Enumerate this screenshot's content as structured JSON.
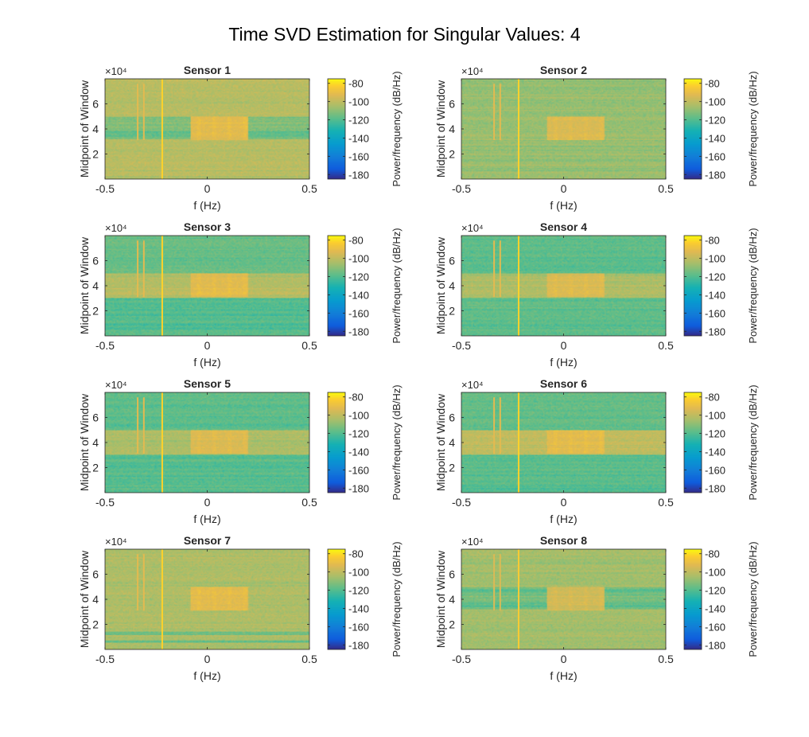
{
  "figure": {
    "title": "Time SVD Estimation for Singular Values: 4"
  },
  "chart_data": [
    {
      "type": "heatmap",
      "title": "Sensor 1",
      "xlabel": "f (Hz)",
      "ylabel": "Midpoint of Window",
      "y_exponent": "×10⁴",
      "xlim": [
        -0.5,
        0.5
      ],
      "ylim": [
        0,
        80000
      ],
      "xticks": [
        -0.5,
        0,
        0.5
      ],
      "yticks": [
        20000,
        40000,
        60000
      ],
      "ytick_labels": [
        "2",
        "4",
        "6"
      ],
      "colorbar": {
        "label": "Power/frequency (dB/Hz)",
        "clim": [
          -185,
          -75
        ],
        "ticks": [
          -80,
          -100,
          -120,
          -140,
          -160,
          -180
        ]
      },
      "background_db": -102,
      "bands": [
        {
          "y_range": [
            32000,
            50000
          ],
          "db": -112
        },
        {
          "y_range": [
            34000,
            38000
          ],
          "db": -118
        }
      ],
      "hot_block": {
        "x_range": [
          -0.08,
          0.2
        ],
        "y_range": [
          31000,
          50000
        ],
        "db": -92
      },
      "spectral_lines": [
        {
          "x": -0.34,
          "y_range": [
            31000,
            76000
          ],
          "db": -92
        },
        {
          "x": -0.31,
          "y_range": [
            31000,
            76000
          ],
          "db": -92
        },
        {
          "x": -0.22,
          "y_range": [
            0,
            80000
          ],
          "db": -82
        }
      ]
    },
    {
      "type": "heatmap",
      "title": "Sensor 2",
      "xlabel": "f (Hz)",
      "ylabel": "Midpoint of Window",
      "y_exponent": "×10⁴",
      "xlim": [
        -0.5,
        0.5
      ],
      "ylim": [
        0,
        80000
      ],
      "xticks": [
        -0.5,
        0,
        0.5
      ],
      "yticks": [
        20000,
        40000,
        60000
      ],
      "ytick_labels": [
        "2",
        "4",
        "6"
      ],
      "colorbar": {
        "label": "Power/frequency (dB/Hz)",
        "clim": [
          -185,
          -75
        ],
        "ticks": [
          -80,
          -100,
          -120,
          -140,
          -160,
          -180
        ]
      },
      "background_db": -108,
      "bands": [],
      "hot_block": {
        "x_range": [
          -0.08,
          0.2
        ],
        "y_range": [
          31000,
          50000
        ],
        "db": -94
      },
      "spectral_lines": [
        {
          "x": -0.34,
          "y_range": [
            31000,
            76000
          ],
          "db": -92
        },
        {
          "x": -0.31,
          "y_range": [
            31000,
            76000
          ],
          "db": -92
        },
        {
          "x": -0.22,
          "y_range": [
            0,
            80000
          ],
          "db": -82
        }
      ]
    },
    {
      "type": "heatmap",
      "title": "Sensor 3",
      "xlabel": "f (Hz)",
      "ylabel": "Midpoint of Window",
      "y_exponent": "×10⁴",
      "xlim": [
        -0.5,
        0.5
      ],
      "ylim": [
        0,
        80000
      ],
      "xticks": [
        -0.5,
        0,
        0.5
      ],
      "yticks": [
        20000,
        40000,
        60000
      ],
      "ytick_labels": [
        "2",
        "4",
        "6"
      ],
      "colorbar": {
        "label": "Power/frequency (dB/Hz)",
        "clim": [
          -185,
          -75
        ],
        "ticks": [
          -80,
          -100,
          -120,
          -140,
          -160,
          -180
        ]
      },
      "background_db": -114,
      "bands": [
        {
          "y_range": [
            50000,
            80000
          ],
          "db": -116
        },
        {
          "y_range": [
            30000,
            50000
          ],
          "db": -102
        },
        {
          "y_range": [
            0,
            30000
          ],
          "db": -120
        }
      ],
      "hot_block": {
        "x_range": [
          -0.08,
          0.2
        ],
        "y_range": [
          31000,
          50000
        ],
        "db": -92
      },
      "spectral_lines": [
        {
          "x": -0.34,
          "y_range": [
            31000,
            76000
          ],
          "db": -92
        },
        {
          "x": -0.31,
          "y_range": [
            31000,
            76000
          ],
          "db": -92
        },
        {
          "x": -0.22,
          "y_range": [
            0,
            80000
          ],
          "db": -82
        }
      ]
    },
    {
      "type": "heatmap",
      "title": "Sensor 4",
      "xlabel": "f (Hz)",
      "ylabel": "Midpoint of Window",
      "y_exponent": "×10⁴",
      "xlim": [
        -0.5,
        0.5
      ],
      "ylim": [
        0,
        80000
      ],
      "xticks": [
        -0.5,
        0,
        0.5
      ],
      "yticks": [
        20000,
        40000,
        60000
      ],
      "ytick_labels": [
        "2",
        "4",
        "6"
      ],
      "colorbar": {
        "label": "Power/frequency (dB/Hz)",
        "clim": [
          -185,
          -75
        ],
        "ticks": [
          -80,
          -100,
          -120,
          -140,
          -160,
          -180
        ]
      },
      "background_db": -116,
      "bands": [
        {
          "y_range": [
            50000,
            80000
          ],
          "db": -118
        },
        {
          "y_range": [
            30000,
            50000
          ],
          "db": -104
        },
        {
          "y_range": [
            0,
            30000
          ],
          "db": -118
        }
      ],
      "hot_block": {
        "x_range": [
          -0.08,
          0.2
        ],
        "y_range": [
          31000,
          50000
        ],
        "db": -94
      },
      "spectral_lines": [
        {
          "x": -0.34,
          "y_range": [
            31000,
            76000
          ],
          "db": -92
        },
        {
          "x": -0.31,
          "y_range": [
            31000,
            76000
          ],
          "db": -92
        },
        {
          "x": -0.22,
          "y_range": [
            0,
            80000
          ],
          "db": -82
        }
      ]
    },
    {
      "type": "heatmap",
      "title": "Sensor 5",
      "xlabel": "f (Hz)",
      "ylabel": "Midpoint of Window",
      "y_exponent": "×10⁴",
      "xlim": [
        -0.5,
        0.5
      ],
      "ylim": [
        0,
        80000
      ],
      "xticks": [
        -0.5,
        0,
        0.5
      ],
      "yticks": [
        20000,
        40000,
        60000
      ],
      "ytick_labels": [
        "2",
        "4",
        "6"
      ],
      "colorbar": {
        "label": "Power/frequency (dB/Hz)",
        "clim": [
          -185,
          -75
        ],
        "ticks": [
          -80,
          -100,
          -120,
          -140,
          -160,
          -180
        ]
      },
      "background_db": -116,
      "bands": [
        {
          "y_range": [
            50000,
            80000
          ],
          "db": -118
        },
        {
          "y_range": [
            30000,
            50000
          ],
          "db": -103
        },
        {
          "y_range": [
            0,
            30000
          ],
          "db": -119
        }
      ],
      "hot_block": {
        "x_range": [
          -0.08,
          0.2
        ],
        "y_range": [
          31000,
          50000
        ],
        "db": -93
      },
      "spectral_lines": [
        {
          "x": -0.34,
          "y_range": [
            31000,
            76000
          ],
          "db": -92
        },
        {
          "x": -0.31,
          "y_range": [
            31000,
            76000
          ],
          "db": -92
        },
        {
          "x": -0.22,
          "y_range": [
            0,
            80000
          ],
          "db": -82
        }
      ]
    },
    {
      "type": "heatmap",
      "title": "Sensor 6",
      "xlabel": "f (Hz)",
      "ylabel": "Midpoint of Window",
      "y_exponent": "×10⁴",
      "xlim": [
        -0.5,
        0.5
      ],
      "ylim": [
        0,
        80000
      ],
      "xticks": [
        -0.5,
        0,
        0.5
      ],
      "yticks": [
        20000,
        40000,
        60000
      ],
      "ytick_labels": [
        "2",
        "4",
        "6"
      ],
      "colorbar": {
        "label": "Power/frequency (dB/Hz)",
        "clim": [
          -185,
          -75
        ],
        "ticks": [
          -80,
          -100,
          -120,
          -140,
          -160,
          -180
        ]
      },
      "background_db": -115,
      "bands": [
        {
          "y_range": [
            50000,
            80000
          ],
          "db": -117
        },
        {
          "y_range": [
            30000,
            50000
          ],
          "db": -100
        },
        {
          "y_range": [
            0,
            30000
          ],
          "db": -119
        }
      ],
      "hot_block": {
        "x_range": [
          -0.08,
          0.2
        ],
        "y_range": [
          31000,
          50000
        ],
        "db": -92
      },
      "spectral_lines": [
        {
          "x": -0.34,
          "y_range": [
            31000,
            76000
          ],
          "db": -92
        },
        {
          "x": -0.31,
          "y_range": [
            31000,
            76000
          ],
          "db": -92
        },
        {
          "x": -0.22,
          "y_range": [
            0,
            80000
          ],
          "db": -82
        }
      ]
    },
    {
      "type": "heatmap",
      "title": "Sensor 7",
      "xlabel": "f (Hz)",
      "ylabel": "Midpoint of Window",
      "y_exponent": "×10⁴",
      "xlim": [
        -0.5,
        0.5
      ],
      "ylim": [
        0,
        80000
      ],
      "xticks": [
        -0.5,
        0,
        0.5
      ],
      "yticks": [
        20000,
        40000,
        60000
      ],
      "ytick_labels": [
        "2",
        "4",
        "6"
      ],
      "colorbar": {
        "label": "Power/frequency (dB/Hz)",
        "clim": [
          -185,
          -75
        ],
        "ticks": [
          -80,
          -100,
          -120,
          -140,
          -160,
          -180
        ]
      },
      "background_db": -104,
      "bands": [
        {
          "y_range": [
            5000,
            7000
          ],
          "db": -116
        },
        {
          "y_range": [
            12000,
            14000
          ],
          "db": -116
        }
      ],
      "hot_block": {
        "x_range": [
          -0.08,
          0.2
        ],
        "y_range": [
          31000,
          50000
        ],
        "db": -92
      },
      "spectral_lines": [
        {
          "x": -0.34,
          "y_range": [
            31000,
            76000
          ],
          "db": -92
        },
        {
          "x": -0.31,
          "y_range": [
            31000,
            76000
          ],
          "db": -92
        },
        {
          "x": -0.22,
          "y_range": [
            0,
            80000
          ],
          "db": -82
        }
      ]
    },
    {
      "type": "heatmap",
      "title": "Sensor 8",
      "xlabel": "f (Hz)",
      "ylabel": "Midpoint of Window",
      "y_exponent": "×10⁴",
      "xlim": [
        -0.5,
        0.5
      ],
      "ylim": [
        0,
        80000
      ],
      "xticks": [
        -0.5,
        0,
        0.5
      ],
      "yticks": [
        20000,
        40000,
        60000
      ],
      "ytick_labels": [
        "2",
        "4",
        "6"
      ],
      "colorbar": {
        "label": "Power/frequency (dB/Hz)",
        "clim": [
          -185,
          -75
        ],
        "ticks": [
          -80,
          -100,
          -120,
          -140,
          -160,
          -180
        ]
      },
      "background_db": -106,
      "bands": [
        {
          "y_range": [
            32000,
            50000
          ],
          "db": -113
        },
        {
          "y_range": [
            34000,
            38000
          ],
          "db": -118
        },
        {
          "y_range": [
            45000,
            48000
          ],
          "db": -118
        }
      ],
      "hot_block": {
        "x_range": [
          -0.08,
          0.2
        ],
        "y_range": [
          31000,
          50000
        ],
        "db": -96
      },
      "spectral_lines": [
        {
          "x": -0.34,
          "y_range": [
            31000,
            76000
          ],
          "db": -94
        },
        {
          "x": -0.31,
          "y_range": [
            31000,
            76000
          ],
          "db": -94
        },
        {
          "x": -0.22,
          "y_range": [
            0,
            80000
          ],
          "db": -84
        }
      ]
    }
  ]
}
